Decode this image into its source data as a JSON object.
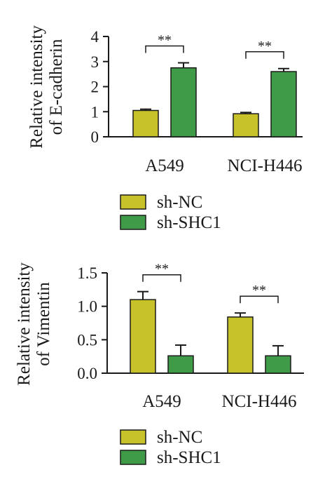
{
  "chart_data": [
    {
      "type": "bar",
      "ylabel_line1": "Relative intensity",
      "ylabel_line2": "of E-cadherin",
      "categories": [
        "A549",
        "NCI-H446"
      ],
      "series": [
        {
          "name": "sh-NC",
          "values": [
            1.05,
            0.92
          ],
          "errors": [
            0.05,
            0.05
          ]
        },
        {
          "name": "sh-SHC1",
          "values": [
            2.75,
            2.6
          ],
          "errors": [
            0.2,
            0.12
          ]
        }
      ],
      "ylim": [
        0,
        4
      ],
      "yticks": [
        "0",
        "1",
        "2",
        "3",
        "4"
      ],
      "significance": [
        "**",
        "**"
      ],
      "legend_position": "below"
    },
    {
      "type": "bar",
      "ylabel_line1": "Relative intensity",
      "ylabel_line2": "of Vimentin",
      "categories": [
        "A549",
        "NCI-H446"
      ],
      "series": [
        {
          "name": "sh-NC",
          "values": [
            1.1,
            0.84
          ],
          "errors": [
            0.12,
            0.06
          ]
        },
        {
          "name": "sh-SHC1",
          "values": [
            0.26,
            0.26
          ],
          "errors": [
            0.16,
            0.15
          ]
        }
      ],
      "ylim": [
        0,
        1.5
      ],
      "yticks": [
        "0.0",
        "0.5",
        "1.0",
        "1.5"
      ],
      "significance": [
        "**",
        "**"
      ],
      "legend_position": "below"
    }
  ],
  "colors": {
    "sh_nc": "#c8c22a",
    "sh_shc1": "#3f9b47",
    "axis": "#1a1a1a"
  }
}
